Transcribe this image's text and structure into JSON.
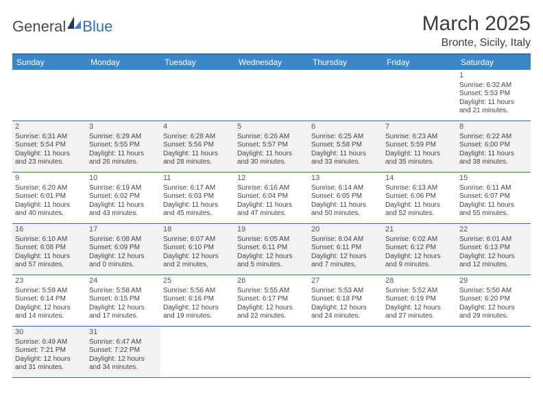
{
  "brand": {
    "part1": "General",
    "part2": "Blue"
  },
  "title": "March 2025",
  "subtitle": "Bronte, Sicily, Italy",
  "colors": {
    "header_bar": "#3b87c8",
    "rule": "#2f6fae",
    "shaded": "#f2f2f2",
    "text": "#444444"
  },
  "weekdays": [
    "Sunday",
    "Monday",
    "Tuesday",
    "Wednesday",
    "Thursday",
    "Friday",
    "Saturday"
  ],
  "weeks": [
    [
      {
        "empty": true
      },
      {
        "empty": true
      },
      {
        "empty": true
      },
      {
        "empty": true
      },
      {
        "empty": true
      },
      {
        "empty": true
      },
      {
        "num": "1",
        "shaded": false,
        "sunrise": "Sunrise: 6:32 AM",
        "sunset": "Sunset: 5:53 PM",
        "day1": "Daylight: 11 hours",
        "day2": "and 21 minutes."
      }
    ],
    [
      {
        "num": "2",
        "shaded": true,
        "sunrise": "Sunrise: 6:31 AM",
        "sunset": "Sunset: 5:54 PM",
        "day1": "Daylight: 11 hours",
        "day2": "and 23 minutes."
      },
      {
        "num": "3",
        "shaded": true,
        "sunrise": "Sunrise: 6:29 AM",
        "sunset": "Sunset: 5:55 PM",
        "day1": "Daylight: 11 hours",
        "day2": "and 26 minutes."
      },
      {
        "num": "4",
        "shaded": true,
        "sunrise": "Sunrise: 6:28 AM",
        "sunset": "Sunset: 5:56 PM",
        "day1": "Daylight: 11 hours",
        "day2": "and 28 minutes."
      },
      {
        "num": "5",
        "shaded": true,
        "sunrise": "Sunrise: 6:26 AM",
        "sunset": "Sunset: 5:57 PM",
        "day1": "Daylight: 11 hours",
        "day2": "and 30 minutes."
      },
      {
        "num": "6",
        "shaded": true,
        "sunrise": "Sunrise: 6:25 AM",
        "sunset": "Sunset: 5:58 PM",
        "day1": "Daylight: 11 hours",
        "day2": "and 33 minutes."
      },
      {
        "num": "7",
        "shaded": true,
        "sunrise": "Sunrise: 6:23 AM",
        "sunset": "Sunset: 5:59 PM",
        "day1": "Daylight: 11 hours",
        "day2": "and 35 minutes."
      },
      {
        "num": "8",
        "shaded": true,
        "sunrise": "Sunrise: 6:22 AM",
        "sunset": "Sunset: 6:00 PM",
        "day1": "Daylight: 11 hours",
        "day2": "and 38 minutes."
      }
    ],
    [
      {
        "num": "9",
        "shaded": false,
        "sunrise": "Sunrise: 6:20 AM",
        "sunset": "Sunset: 6:01 PM",
        "day1": "Daylight: 11 hours",
        "day2": "and 40 minutes."
      },
      {
        "num": "10",
        "shaded": false,
        "sunrise": "Sunrise: 6:19 AM",
        "sunset": "Sunset: 6:02 PM",
        "day1": "Daylight: 11 hours",
        "day2": "and 43 minutes."
      },
      {
        "num": "11",
        "shaded": false,
        "sunrise": "Sunrise: 6:17 AM",
        "sunset": "Sunset: 6:03 PM",
        "day1": "Daylight: 11 hours",
        "day2": "and 45 minutes."
      },
      {
        "num": "12",
        "shaded": false,
        "sunrise": "Sunrise: 6:16 AM",
        "sunset": "Sunset: 6:04 PM",
        "day1": "Daylight: 11 hours",
        "day2": "and 47 minutes."
      },
      {
        "num": "13",
        "shaded": false,
        "sunrise": "Sunrise: 6:14 AM",
        "sunset": "Sunset: 6:05 PM",
        "day1": "Daylight: 11 hours",
        "day2": "and 50 minutes."
      },
      {
        "num": "14",
        "shaded": false,
        "sunrise": "Sunrise: 6:13 AM",
        "sunset": "Sunset: 6:06 PM",
        "day1": "Daylight: 11 hours",
        "day2": "and 52 minutes."
      },
      {
        "num": "15",
        "shaded": false,
        "sunrise": "Sunrise: 6:11 AM",
        "sunset": "Sunset: 6:07 PM",
        "day1": "Daylight: 11 hours",
        "day2": "and 55 minutes."
      }
    ],
    [
      {
        "num": "16",
        "shaded": true,
        "sunrise": "Sunrise: 6:10 AM",
        "sunset": "Sunset: 6:08 PM",
        "day1": "Daylight: 11 hours",
        "day2": "and 57 minutes."
      },
      {
        "num": "17",
        "shaded": true,
        "sunrise": "Sunrise: 6:08 AM",
        "sunset": "Sunset: 6:09 PM",
        "day1": "Daylight: 12 hours",
        "day2": "and 0 minutes."
      },
      {
        "num": "18",
        "shaded": true,
        "sunrise": "Sunrise: 6:07 AM",
        "sunset": "Sunset: 6:10 PM",
        "day1": "Daylight: 12 hours",
        "day2": "and 2 minutes."
      },
      {
        "num": "19",
        "shaded": true,
        "sunrise": "Sunrise: 6:05 AM",
        "sunset": "Sunset: 6:11 PM",
        "day1": "Daylight: 12 hours",
        "day2": "and 5 minutes."
      },
      {
        "num": "20",
        "shaded": true,
        "sunrise": "Sunrise: 6:04 AM",
        "sunset": "Sunset: 6:11 PM",
        "day1": "Daylight: 12 hours",
        "day2": "and 7 minutes."
      },
      {
        "num": "21",
        "shaded": true,
        "sunrise": "Sunrise: 6:02 AM",
        "sunset": "Sunset: 6:12 PM",
        "day1": "Daylight: 12 hours",
        "day2": "and 9 minutes."
      },
      {
        "num": "22",
        "shaded": true,
        "sunrise": "Sunrise: 6:01 AM",
        "sunset": "Sunset: 6:13 PM",
        "day1": "Daylight: 12 hours",
        "day2": "and 12 minutes."
      }
    ],
    [
      {
        "num": "23",
        "shaded": false,
        "sunrise": "Sunrise: 5:59 AM",
        "sunset": "Sunset: 6:14 PM",
        "day1": "Daylight: 12 hours",
        "day2": "and 14 minutes."
      },
      {
        "num": "24",
        "shaded": false,
        "sunrise": "Sunrise: 5:58 AM",
        "sunset": "Sunset: 6:15 PM",
        "day1": "Daylight: 12 hours",
        "day2": "and 17 minutes."
      },
      {
        "num": "25",
        "shaded": false,
        "sunrise": "Sunrise: 5:56 AM",
        "sunset": "Sunset: 6:16 PM",
        "day1": "Daylight: 12 hours",
        "day2": "and 19 minutes."
      },
      {
        "num": "26",
        "shaded": false,
        "sunrise": "Sunrise: 5:55 AM",
        "sunset": "Sunset: 6:17 PM",
        "day1": "Daylight: 12 hours",
        "day2": "and 22 minutes."
      },
      {
        "num": "27",
        "shaded": false,
        "sunrise": "Sunrise: 5:53 AM",
        "sunset": "Sunset: 6:18 PM",
        "day1": "Daylight: 12 hours",
        "day2": "and 24 minutes."
      },
      {
        "num": "28",
        "shaded": false,
        "sunrise": "Sunrise: 5:52 AM",
        "sunset": "Sunset: 6:19 PM",
        "day1": "Daylight: 12 hours",
        "day2": "and 27 minutes."
      },
      {
        "num": "29",
        "shaded": false,
        "sunrise": "Sunrise: 5:50 AM",
        "sunset": "Sunset: 6:20 PM",
        "day1": "Daylight: 12 hours",
        "day2": "and 29 minutes."
      }
    ],
    [
      {
        "num": "30",
        "shaded": true,
        "sunrise": "Sunrise: 6:49 AM",
        "sunset": "Sunset: 7:21 PM",
        "day1": "Daylight: 12 hours",
        "day2": "and 31 minutes."
      },
      {
        "num": "31",
        "shaded": true,
        "sunrise": "Sunrise: 6:47 AM",
        "sunset": "Sunset: 7:22 PM",
        "day1": "Daylight: 12 hours",
        "day2": "and 34 minutes."
      },
      {
        "empty": true
      },
      {
        "empty": true
      },
      {
        "empty": true
      },
      {
        "empty": true
      },
      {
        "empty": true
      }
    ]
  ]
}
